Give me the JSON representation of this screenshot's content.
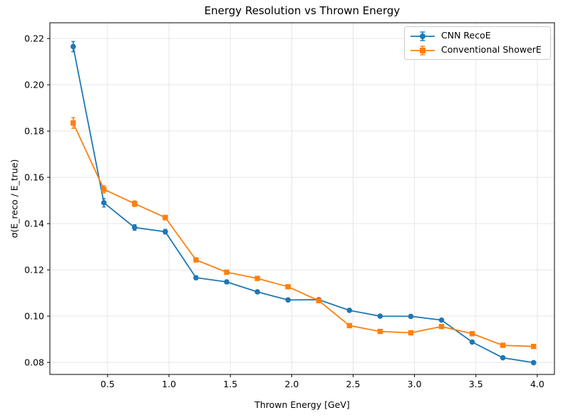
{
  "chart_data": {
    "type": "line",
    "title": "Energy Resolution vs Thrown Energy",
    "xlabel": "Thrown Energy [GeV]",
    "ylabel": "σ(E_reco / E_true)",
    "legend_position": "upper right",
    "grid": true,
    "xlim": [
      0.03,
      4.14
    ],
    "ylim": [
      0.0748,
      0.2268
    ],
    "xticks": [
      0.5,
      1.0,
      1.5,
      2.0,
      2.5,
      3.0,
      3.5,
      4.0
    ],
    "yticks": [
      0.08,
      0.1,
      0.12,
      0.14,
      0.16,
      0.18,
      0.2,
      0.22
    ],
    "x": [
      0.22,
      0.47,
      0.72,
      0.97,
      1.22,
      1.47,
      1.72,
      1.97,
      2.22,
      2.47,
      2.72,
      2.97,
      3.22,
      3.47,
      3.72,
      3.97
    ],
    "series": [
      {
        "name": "CNN RecoE",
        "color": "#1f77b4",
        "marker": "circle",
        "values": [
          0.2165,
          0.149,
          0.1383,
          0.1365,
          0.1166,
          0.1148,
          0.1105,
          0.107,
          0.1071,
          0.1025,
          0.1,
          0.0999,
          0.0983,
          0.0888,
          0.082,
          0.0799
        ],
        "errors": [
          0.0022,
          0.0018,
          0.0012,
          0.001,
          0.0008,
          0.0008,
          0.0007,
          0.0007,
          0.0007,
          0.0006,
          0.0006,
          0.0006,
          0.0006,
          0.0005,
          0.0005,
          0.0005
        ]
      },
      {
        "name": "Conventional ShowerE",
        "color": "#ff7f0e",
        "marker": "square",
        "values": [
          0.1835,
          0.1548,
          0.1486,
          0.1426,
          0.1243,
          0.119,
          0.1163,
          0.1127,
          0.1067,
          0.0959,
          0.0934,
          0.0928,
          0.0955,
          0.0924,
          0.0874,
          0.0869
        ],
        "errors": [
          0.0023,
          0.0016,
          0.0012,
          0.001,
          0.0008,
          0.0008,
          0.0007,
          0.0007,
          0.0007,
          0.0006,
          0.0006,
          0.0006,
          0.0006,
          0.0005,
          0.0005,
          0.0005
        ]
      }
    ]
  }
}
